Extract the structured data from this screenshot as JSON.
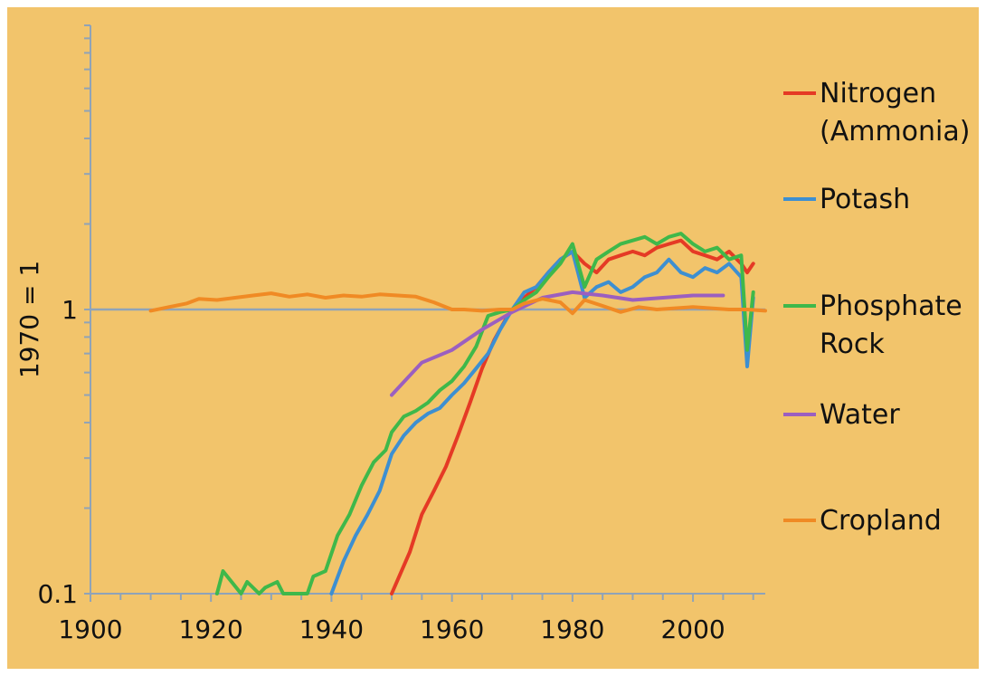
{
  "chart_data": {
    "type": "line",
    "ylabel": "1970 = 1",
    "yscale": "log",
    "ylim": [
      0.1,
      10
    ],
    "xlim": [
      1900,
      2012
    ],
    "xticks": [
      "1900",
      "1920",
      "1940",
      "1960",
      "1980",
      "2000"
    ],
    "yticks": [
      "0.1",
      "1"
    ],
    "reference_line": 1,
    "background": "#f2c46b",
    "axis_color": "#8fa3b8",
    "legend_position": "right",
    "series": [
      {
        "name": "Nitrogen\n(Ammonia)",
        "color": "#e53a25",
        "x": [
          1950,
          1953,
          1955,
          1957,
          1959,
          1961,
          1963,
          1965,
          1967,
          1969,
          1970,
          1972,
          1974,
          1976,
          1978,
          1980,
          1982,
          1984,
          1986,
          1988,
          1990,
          1992,
          1994,
          1996,
          1998,
          2000,
          2002,
          2004,
          2006,
          2008,
          2009,
          2010
        ],
        "y": [
          0.1,
          0.14,
          0.19,
          0.23,
          0.28,
          0.36,
          0.47,
          0.62,
          0.78,
          0.93,
          1.0,
          1.1,
          1.2,
          1.35,
          1.5,
          1.6,
          1.45,
          1.35,
          1.5,
          1.55,
          1.6,
          1.55,
          1.65,
          1.7,
          1.75,
          1.6,
          1.55,
          1.5,
          1.6,
          1.45,
          1.35,
          1.45
        ]
      },
      {
        "name": "Potash",
        "color": "#3d8fd1",
        "x": [
          1940,
          1942,
          1944,
          1946,
          1948,
          1950,
          1952,
          1954,
          1956,
          1958,
          1960,
          1962,
          1964,
          1966,
          1968,
          1970,
          1972,
          1974,
          1976,
          1978,
          1980,
          1982,
          1984,
          1986,
          1988,
          1990,
          1992,
          1994,
          1996,
          1998,
          2000,
          2002,
          2004,
          2006,
          2008,
          2009,
          2010
        ],
        "y": [
          0.1,
          0.13,
          0.16,
          0.19,
          0.23,
          0.31,
          0.36,
          0.4,
          0.43,
          0.45,
          0.5,
          0.55,
          0.62,
          0.7,
          0.85,
          1.0,
          1.15,
          1.2,
          1.35,
          1.5,
          1.6,
          1.1,
          1.2,
          1.25,
          1.15,
          1.2,
          1.3,
          1.35,
          1.5,
          1.35,
          1.3,
          1.4,
          1.35,
          1.45,
          1.3,
          0.63,
          1.1
        ]
      },
      {
        "name": "Phosphate\nRock",
        "color": "#3fb84a",
        "x": [
          1921,
          1922,
          1925,
          1926,
          1928,
          1929,
          1931,
          1932,
          1936,
          1937,
          1939,
          1941,
          1943,
          1945,
          1947,
          1949,
          1950,
          1952,
          1954,
          1956,
          1958,
          1960,
          1962,
          1964,
          1966,
          1968,
          1970,
          1972,
          1974,
          1976,
          1978,
          1980,
          1982,
          1984,
          1986,
          1988,
          1990,
          1992,
          1994,
          1996,
          1998,
          2000,
          2002,
          2004,
          2006,
          2008,
          2009,
          2010
        ],
        "y": [
          0.1,
          0.12,
          0.1,
          0.11,
          0.1,
          0.105,
          0.11,
          0.1,
          0.1,
          0.115,
          0.12,
          0.16,
          0.19,
          0.24,
          0.29,
          0.32,
          0.37,
          0.42,
          0.44,
          0.47,
          0.52,
          0.56,
          0.63,
          0.74,
          0.95,
          0.98,
          1.0,
          1.08,
          1.15,
          1.3,
          1.45,
          1.7,
          1.2,
          1.5,
          1.6,
          1.7,
          1.75,
          1.8,
          1.7,
          1.8,
          1.85,
          1.7,
          1.6,
          1.65,
          1.5,
          1.55,
          0.72,
          1.15
        ]
      },
      {
        "name": "Water",
        "color": "#9b5fc0",
        "x": [
          1950,
          1955,
          1960,
          1965,
          1970,
          1975,
          1980,
          1985,
          1990,
          1995,
          2000,
          2005
        ],
        "y": [
          0.5,
          0.65,
          0.72,
          0.85,
          0.98,
          1.1,
          1.15,
          1.12,
          1.08,
          1.1,
          1.12,
          1.12
        ]
      },
      {
        "name": "Cropland",
        "color": "#f08a24",
        "x": [
          1910,
          1913,
          1916,
          1918,
          1921,
          1924,
          1927,
          1930,
          1933,
          1936,
          1939,
          1942,
          1945,
          1948,
          1951,
          1954,
          1957,
          1960,
          1962,
          1965,
          1968,
          1970,
          1972,
          1975,
          1978,
          1980,
          1982,
          1985,
          1988,
          1991,
          1994,
          1997,
          2000,
          2003,
          2006,
          2009,
          2012
        ],
        "y": [
          0.99,
          1.02,
          1.05,
          1.09,
          1.08,
          1.1,
          1.12,
          1.14,
          1.11,
          1.13,
          1.1,
          1.12,
          1.11,
          1.13,
          1.12,
          1.11,
          1.06,
          1.0,
          1.0,
          0.99,
          1.0,
          1.0,
          1.05,
          1.09,
          1.06,
          0.97,
          1.08,
          1.03,
          0.98,
          1.02,
          1.0,
          1.01,
          1.02,
          1.01,
          1.0,
          1.0,
          0.99
        ]
      }
    ]
  }
}
